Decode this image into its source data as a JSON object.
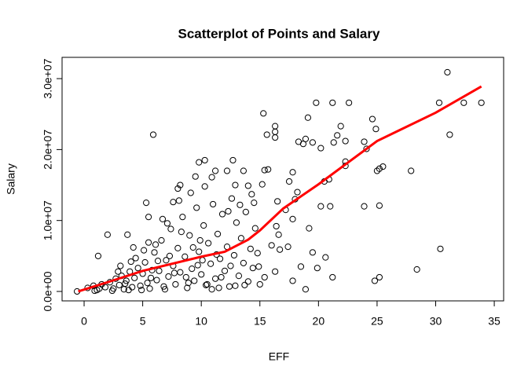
{
  "chart_data": {
    "type": "scatter",
    "title": "Scatterplot of Points and Salary",
    "xlabel": "EFF",
    "ylabel": "Salary",
    "x": [
      31,
      30.3,
      32.4,
      33.9,
      31.2,
      30.4,
      28.4,
      27.9,
      25.5,
      25.2,
      25,
      25.2,
      24.6,
      24.9,
      25.2,
      24.8,
      23.9,
      24.1,
      23.9,
      22.3,
      22.3,
      22.3,
      21.6,
      21.9,
      22.6,
      21.2,
      21.3,
      21.2,
      20.6,
      19.8,
      19.5,
      19.1,
      18.7,
      18.9,
      18.3,
      20.2,
      20.5,
      20.9,
      20.2,
      21,
      19.2,
      19.5,
      19.9,
      18.5,
      18.9,
      17.8,
      17.4,
      16.7,
      16,
      15.6,
      16.3,
      16.3,
      16.3,
      15.3,
      15.4,
      15.7,
      15.2,
      17.5,
      18.2,
      17.8,
      18,
      17.2,
      17.8,
      16.5,
      16.4,
      16.6,
      15.4,
      15,
      14.9,
      16.3,
      14,
      14.5,
      14.3,
      13.6,
      12.7,
      12.2,
      11.2,
      10.3,
      9.8,
      10.9,
      12.9,
      10.3,
      9.5,
      8.2,
      8,
      7.6,
      5.9,
      5.3,
      5.5,
      4.2,
      3.7,
      2,
      1.2,
      -0.6,
      0.3,
      0.8,
      1.1,
      1.5,
      1.8,
      2.2,
      2.5,
      2.7,
      3.0,
      3.2,
      3.4,
      3.6,
      3.9,
      4.1,
      4.3,
      4.6,
      4.8,
      5.0,
      5.2,
      5.4,
      5.6,
      5.8,
      6.0,
      6.2,
      6.4,
      6.6,
      6.8,
      7.0,
      7.2,
      7.4,
      7.6,
      7.8,
      8.0,
      8.2,
      8.4,
      8.6,
      8.8,
      9.0,
      9.2,
      9.4,
      9.6,
      9.8,
      10.0,
      10.2,
      10.4,
      10.6,
      10.8,
      11.0,
      11.2,
      11.4,
      11.6,
      11.8,
      12.0,
      12.2,
      12.4,
      12.6,
      12.8,
      13.0,
      13.2,
      13.4,
      13.6,
      13.8,
      14.0,
      14.2,
      14.4,
      14.6,
      3.1,
      4.4,
      5.1,
      6.1,
      7.1,
      8.1,
      9.1,
      2.4,
      4.9,
      6.9,
      8.9,
      10.9,
      12.9,
      1.3,
      3.8,
      5.7,
      7.7,
      9.7,
      11.7,
      13.7,
      4.0,
      6.3,
      8.3,
      10.1,
      11.3,
      12.3,
      13.3,
      7.3,
      9.3,
      2.9,
      0.9,
      6.7,
      5.5,
      3.5,
      8.7,
      10.5,
      12.5,
      14.8,
      9.9,
      11.5
    ],
    "values": [
      30900000.0,
      26600000.0,
      26600000.0,
      26600000.0,
      22100000.0,
      6000000.0,
      3100000.0,
      17000000.0,
      17600000.0,
      17300000.0,
      17000000.0,
      12100000.0,
      24300000.0,
      22900000.0,
      2000000.0,
      1500000.0,
      21100000.0,
      20100000.0,
      12000000.0,
      17700000.0,
      18300000.0,
      21200000.0,
      22000000.0,
      23300000.0,
      26600000.0,
      26600000.0,
      21000000.0,
      2000000.0,
      4800000.0,
      26600000.0,
      21000000.0,
      24500000.0,
      20800000.0,
      21500000.0,
      21100000.0,
      20200000.0,
      15500000.0,
      15800000.0,
      12000000.0,
      12000000.0,
      8900000.0,
      5500000.0,
      3300000.0,
      3500000.0,
      300000.0,
      1500000.0,
      6300000.0,
      5900000.0,
      6500000.0,
      22100000.0,
      23300000.0,
      22500000.0,
      21700000.0,
      25100000.0,
      17100000.0,
      17200000.0,
      15100000.0,
      15500000.0,
      14000000.0,
      16800000.0,
      13000000.0,
      11500000.0,
      10200000.0,
      12700000.0,
      9200000.0,
      8000000.0,
      2000000.0,
      1000000.0,
      3500000.0,
      2800000.0,
      14900000.0,
      12500000.0,
      13700000.0,
      17000000.0,
      18500000.0,
      17000000.0,
      17000000.0,
      18500000.0,
      18200000.0,
      16100000.0,
      15000000.0,
      14800000.0,
      16200000.0,
      15000000.0,
      14500000.0,
      12600000.0,
      22100000.0,
      12500000.0,
      10500000.0,
      6200000.0,
      8000000.0,
      8000000.0,
      5000000.0,
      0.0,
      500000.0,
      800000.0,
      200000.0,
      1000000.0,
      600000.0,
      1300000.0,
      400000.0,
      1800000.0,
      900000.0,
      2200000.0,
      300000.0,
      1500000.0,
      2800000.0,
      600000.0,
      1900000.0,
      3300000.0,
      800000.0,
      2500000.0,
      4100000.0,
      1200000.0,
      400000.0,
      3000000.0,
      5500000.0,
      1600000.0,
      2900000.0,
      7200000.0,
      700000.0,
      4400000.0,
      2100000.0,
      8800000.0,
      3600000.0,
      1000000.0,
      6100000.0,
      2700000.0,
      10500000.0,
      4900000.0,
      500000.0,
      7900000.0,
      3200000.0,
      1500000.0,
      11800000.0,
      5600000.0,
      2400000.0,
      9300000.0,
      900000.0,
      6800000.0,
      3900000.0,
      12300000.0,
      1800000.0,
      8100000.0,
      4600000.0,
      10900000.0,
      2900000.0,
      6300000.0,
      700000.0,
      13100000.0,
      5100000.0,
      9700000.0,
      2200000.0,
      7500000.0,
      4000000.0,
      11200000.0,
      1400000.0,
      6000000.0,
      3300000.0,
      8900000.0,
      3600000.0,
      4700000.0,
      5800000.0,
      6600000.0,
      9600000.0,
      12800000.0,
      13900000.0,
      100000.0,
      200000.0,
      300000.0,
      1200000.0,
      300000.0,
      800000.0,
      400000.0,
      200000.0,
      1900000.0,
      2600000.0,
      3700000.0,
      2000000.0,
      900000.0,
      4200000.0,
      4300000.0,
      8400000.0,
      4400000.0,
      5200000.0,
      11300000.0,
      12200000.0,
      5000000.0,
      6200000.0,
      2800000.0,
      100000.0,
      10200000.0,
      6900000.0,
      1100000.0,
      2000000.0,
      1000000.0,
      3600000.0,
      5400000.0,
      7200000.0,
      500000.0
    ],
    "color": "#000000",
    "trend": {
      "x": [
        -0.5,
        2,
        5,
        10,
        12,
        14,
        15,
        17,
        20,
        25,
        30,
        33.9
      ],
      "values": [
        0,
        1300000.0,
        2900000.0,
        4900000.0,
        5600000.0,
        7300000.0,
        8600000.0,
        11700000.0,
        15100000.0,
        21200000.0,
        25200000.0,
        28900000.0
      ],
      "color": "#ff0000"
    },
    "xlim": [
      -1.88,
      35.8
    ],
    "ylim": [
      -1330000.0,
      33000000.0
    ],
    "xticks": [
      0,
      5,
      10,
      15,
      20,
      25,
      30,
      35
    ],
    "yticks": [
      {
        "value": 0,
        "label": "0.0e+00"
      },
      {
        "value": 10000000,
        "label": "1.0e+07"
      },
      {
        "value": 20000000,
        "label": "2.0e+07"
      },
      {
        "value": 30000000,
        "label": "3.0e+07"
      }
    ]
  }
}
